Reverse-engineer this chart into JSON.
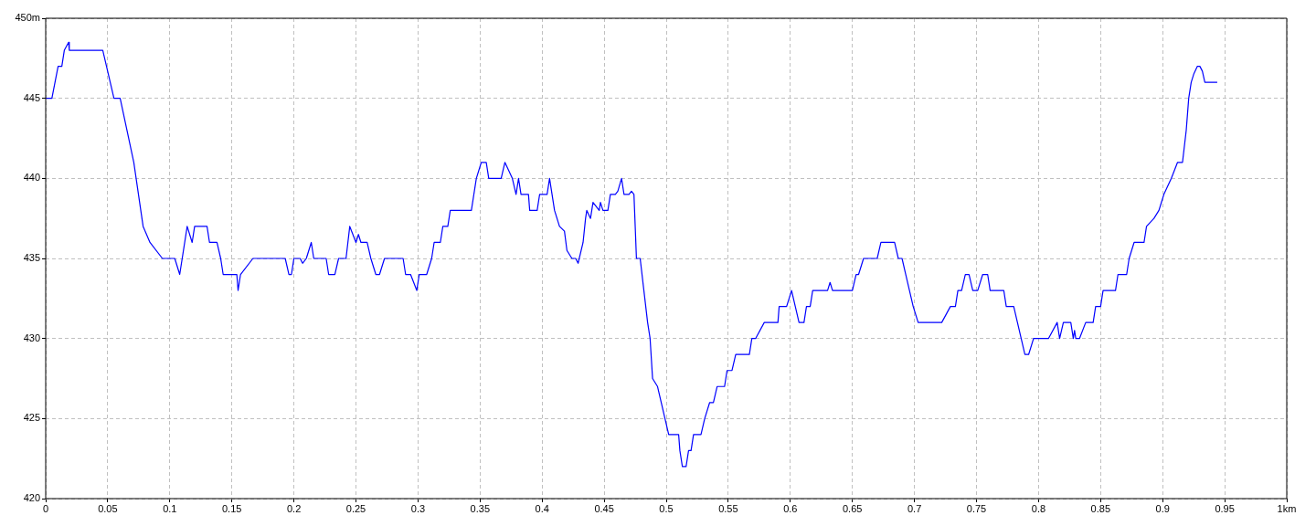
{
  "chart_data": {
    "type": "line",
    "x": [
      0,
      0.005,
      0.01,
      0.013,
      0.015,
      0.0185,
      0.019,
      0.046,
      0.049,
      0.052,
      0.055,
      0.06,
      0.071,
      0.0785,
      0.084,
      0.094,
      0.104,
      0.108,
      0.114,
      0.118,
      0.12,
      0.13,
      0.132,
      0.138,
      0.141,
      0.143,
      0.154,
      0.155,
      0.157,
      0.167,
      0.193,
      0.196,
      0.198,
      0.2,
      0.205,
      0.207,
      0.21,
      0.214,
      0.216,
      0.226,
      0.228,
      0.233,
      0.236,
      0.242,
      0.245,
      0.25,
      0.252,
      0.254,
      0.259,
      0.262,
      0.266,
      0.269,
      0.273,
      0.288,
      0.29,
      0.294,
      0.299,
      0.301,
      0.307,
      0.311,
      0.313,
      0.318,
      0.32,
      0.324,
      0.326,
      0.343,
      0.347,
      0.351,
      0.355,
      0.357,
      0.367,
      0.37,
      0.373,
      0.376,
      0.379,
      0.381,
      0.383,
      0.389,
      0.39,
      0.396,
      0.398,
      0.404,
      0.406,
      0.408,
      0.41,
      0.414,
      0.418,
      0.42,
      0.424,
      0.427,
      0.429,
      0.433,
      0.435,
      0.436,
      0.439,
      0.441,
      0.446,
      0.447,
      0.449,
      0.453,
      0.455,
      0.459,
      0.461,
      0.464,
      0.466,
      0.47,
      0.472,
      0.474,
      0.476,
      0.479,
      0.482,
      0.485,
      0.487,
      0.489,
      0.493,
      0.496,
      0.499,
      0.502,
      0.51,
      0.511,
      0.513,
      0.516,
      0.518,
      0.52,
      0.522,
      0.528,
      0.531,
      0.535,
      0.538,
      0.541,
      0.547,
      0.549,
      0.553,
      0.556,
      0.567,
      0.569,
      0.572,
      0.579,
      0.59,
      0.591,
      0.597,
      0.601,
      0.604,
      0.607,
      0.611,
      0.613,
      0.616,
      0.618,
      0.63,
      0.632,
      0.634,
      0.65,
      0.653,
      0.655,
      0.659,
      0.67,
      0.673,
      0.684,
      0.687,
      0.69,
      0.693,
      0.696,
      0.699,
      0.703,
      0.722,
      0.729,
      0.733,
      0.735,
      0.738,
      0.741,
      0.744,
      0.747,
      0.751,
      0.755,
      0.759,
      0.761,
      0.772,
      0.774,
      0.78,
      0.783,
      0.789,
      0.792,
      0.796,
      0.808,
      0.815,
      0.817,
      0.82,
      0.826,
      0.828,
      0.829,
      0.83,
      0.833,
      0.838,
      0.844,
      0.846,
      0.85,
      0.852,
      0.862,
      0.864,
      0.871,
      0.873,
      0.877,
      0.885,
      0.887,
      0.893,
      0.897,
      0.901,
      0.907,
      0.912,
      0.916,
      0.919,
      0.921,
      0.923,
      0.925,
      0.928,
      0.93,
      0.932,
      0.934,
      0.944
    ],
    "values": [
      445,
      445,
      447,
      447,
      448,
      448.5,
      448,
      448,
      447,
      446,
      445,
      445,
      441,
      437,
      436,
      435,
      435,
      434,
      437,
      436,
      437,
      437,
      436,
      436,
      435,
      434,
      434,
      433,
      434,
      435,
      435,
      434,
      434,
      435,
      435,
      434.7,
      435,
      436,
      435,
      435,
      434,
      434,
      435,
      435,
      437,
      436,
      436.5,
      436,
      436,
      435,
      434,
      434,
      435,
      435,
      434,
      434,
      433,
      434,
      434,
      435,
      436,
      436,
      437,
      437,
      438,
      438,
      440,
      441,
      441,
      440,
      440,
      441,
      440.5,
      440,
      439,
      440,
      439,
      439,
      438,
      438,
      439,
      439,
      440,
      439,
      438,
      437,
      436.7,
      435.5,
      435,
      435,
      434.7,
      436,
      437.5,
      438,
      437.5,
      438.5,
      438,
      438.5,
      438,
      438,
      439,
      439,
      439.2,
      440,
      439,
      439,
      439.2,
      439,
      435,
      435,
      433,
      431,
      430,
      427.5,
      427,
      426,
      425,
      424,
      424,
      423,
      422,
      422,
      423,
      423,
      424,
      424,
      425,
      426,
      426,
      427,
      427,
      428,
      428,
      429,
      429,
      430,
      430,
      431,
      431,
      432,
      432,
      433,
      432,
      431,
      431,
      432,
      432,
      433,
      433,
      433.5,
      433,
      433,
      434,
      434,
      435,
      435,
      436,
      436,
      435,
      435,
      434,
      433,
      432,
      431,
      431,
      432,
      432,
      433,
      433,
      434,
      434,
      433,
      433,
      434,
      434,
      433,
      433,
      432,
      432,
      431,
      429,
      429,
      430,
      430,
      431,
      430,
      431,
      431,
      430,
      430.5,
      430,
      430,
      431,
      431,
      432,
      432,
      433,
      433,
      434,
      434,
      435,
      436,
      436,
      437,
      437.5,
      438,
      439,
      440,
      441,
      441,
      443,
      445,
      446,
      446.5,
      447,
      447,
      446.7,
      446,
      446
    ],
    "color": "#0000ff",
    "xlim": [
      0,
      1
    ],
    "xticks": [
      0,
      0.05,
      0.1,
      0.15,
      0.2,
      0.25,
      0.3,
      0.35,
      0.4,
      0.45,
      0.5,
      0.55,
      0.6,
      0.65,
      0.7,
      0.75,
      0.8,
      0.85,
      0.9,
      0.95,
      {
        "value": 1,
        "label": "1km"
      }
    ],
    "ylim": [
      420,
      450
    ],
    "yticks": [
      420,
      425,
      430,
      435,
      440,
      445,
      {
        "value": 450,
        "label": "450m"
      }
    ],
    "grid": true,
    "legend": false,
    "marker": "none",
    "line_style": "solid"
  }
}
